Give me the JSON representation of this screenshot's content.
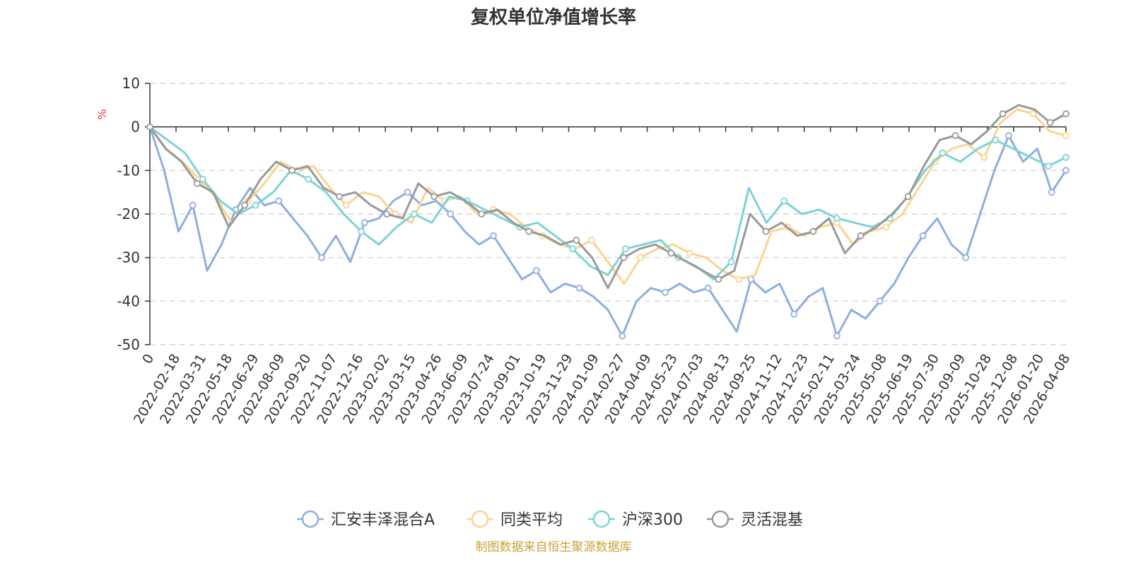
{
  "chart_data": {
    "type": "line",
    "title": "复权单位净值增长率",
    "ylabel": "%",
    "ylim": [
      -50,
      10
    ],
    "yticks": [
      10,
      0,
      -10,
      -20,
      -30,
      -40,
      -50
    ],
    "x_labels": [
      "0",
      "2022-02-18",
      "2022-03-31",
      "2022-05-18",
      "2022-06-29",
      "2022-08-09",
      "2022-09-20",
      "2022-11-07",
      "2022-12-16",
      "2023-02-02",
      "2023-03-15",
      "2023-04-26",
      "2023-06-09",
      "2023-07-24",
      "2023-09-01",
      "2023-10-19",
      "2023-11-29",
      "2024-01-09",
      "2024-02-27",
      "2024-04-09",
      "2024-05-23",
      "2024-07-03",
      "2024-08-13",
      "2024-09-25",
      "2024-11-12",
      "2024-12-23",
      "2025-02-11",
      "2025-03-24",
      "2025-05-08",
      "2025-06-19",
      "2025-07-30",
      "2025-09-09",
      "2025-10-28",
      "2025-12-08",
      "2026-01-20",
      "2026-04-08"
    ],
    "grid": "horizontal dashed",
    "legend_position": "bottom",
    "series": [
      {
        "name": "汇安丰泽混合A",
        "color": "#8eaede",
        "values": [
          0,
          -10,
          -24,
          -18,
          -33,
          -27,
          -19,
          -14,
          -18,
          -17,
          -21,
          -25,
          -30,
          -25,
          -31,
          -22,
          -21,
          -17,
          -15,
          -18,
          -17,
          -20,
          -24,
          -27,
          -25,
          -30,
          -35,
          -33,
          -38,
          -36,
          -37,
          -39,
          -42,
          -48,
          -40,
          -37,
          -38,
          -36,
          -38,
          -37,
          -42,
          -47,
          -35,
          -38,
          -36,
          -43,
          -39,
          -37,
          -48,
          -42,
          -44,
          -40,
          -36,
          -30,
          -25,
          -21,
          -27,
          -30,
          -20,
          -10,
          -2,
          -8,
          -5,
          -15,
          -10
        ]
      },
      {
        "name": "同类平均",
        "color": "#fbd490",
        "values": [
          0,
          -5,
          -8,
          -12,
          -16,
          -22,
          -17,
          -13,
          -8,
          -10,
          -9,
          -14,
          -18,
          -15,
          -16,
          -20,
          -22,
          -14,
          -17,
          -16,
          -20,
          -19,
          -20,
          -23,
          -25,
          -27,
          -28,
          -26,
          -31,
          -36,
          -30,
          -28,
          -27,
          -29,
          -30,
          -33,
          -35,
          -34,
          -24,
          -23,
          -25,
          -23,
          -22,
          -27,
          -24,
          -23,
          -20,
          -14,
          -8,
          -5,
          -4,
          -7,
          1,
          4,
          3,
          -1,
          -2
        ]
      },
      {
        "name": "沪深300",
        "color": "#7ed3d4",
        "values": [
          0,
          -3,
          -6,
          -12,
          -17,
          -20,
          -18,
          -15,
          -10,
          -12,
          -15,
          -20,
          -24,
          -27,
          -23,
          -20,
          -22,
          -16,
          -17,
          -19,
          -21,
          -23,
          -22,
          -25,
          -28,
          -32,
          -34,
          -28,
          -27,
          -26,
          -30,
          -32,
          -35,
          -31,
          -14,
          -22,
          -17,
          -20,
          -19,
          -21,
          -22,
          -23,
          -21,
          -16,
          -10,
          -6,
          -8,
          -5,
          -3,
          -5,
          -7,
          -9,
          -7
        ]
      },
      {
        "name": "灵活混基",
        "color": "#999999",
        "values": [
          0,
          -5,
          -8,
          -13,
          -15,
          -23,
          -18,
          -12,
          -8,
          -10,
          -9,
          -14,
          -16,
          -15,
          -18,
          -20,
          -21,
          -13,
          -16,
          -15,
          -17,
          -20,
          -19,
          -22,
          -24,
          -25,
          -27,
          -26,
          -30,
          -37,
          -30,
          -28,
          -27,
          -29,
          -31,
          -33,
          -35,
          -33,
          -20,
          -24,
          -22,
          -25,
          -24,
          -21,
          -29,
          -25,
          -23,
          -20,
          -16,
          -9,
          -3,
          -2,
          -4,
          -1,
          3,
          5,
          4,
          1,
          3
        ]
      }
    ]
  },
  "legend": {
    "items": [
      "汇安丰泽混合A",
      "同类平均",
      "沪深300",
      "灵活混基"
    ]
  },
  "footer": {
    "source": "制图数据来自恒生聚源数据库",
    "source_color": "#c9a23a"
  },
  "axis": {
    "unit_color": "#e23a3a"
  }
}
